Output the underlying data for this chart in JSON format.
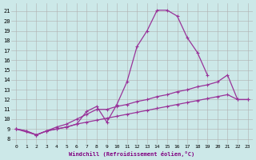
{
  "xlabel": "Windchill (Refroidissement éolien,°C)",
  "bg_color": "#cce8e8",
  "line_color": "#993399",
  "grid_color": "#b0b0b0",
  "x_ticks": [
    0,
    1,
    2,
    3,
    4,
    5,
    6,
    7,
    8,
    9,
    10,
    11,
    12,
    13,
    14,
    15,
    16,
    17,
    18,
    19,
    20,
    21,
    22,
    23
  ],
  "y_ticks": [
    8,
    9,
    10,
    11,
    12,
    13,
    14,
    15,
    16,
    17,
    18,
    19,
    20,
    21
  ],
  "ylim": [
    7.5,
    21.8
  ],
  "xlim": [
    -0.5,
    23.5
  ],
  "line1_x": [
    0,
    1,
    2,
    3,
    4,
    5,
    6,
    7,
    8,
    9,
    10,
    11,
    12,
    13,
    14,
    15,
    16,
    17,
    18,
    19,
    20,
    21,
    22,
    23
  ],
  "line1_y": [
    9.0,
    8.8,
    8.4,
    8.8,
    9.0,
    9.2,
    9.5,
    10.8,
    11.3,
    9.7,
    11.5,
    13.8,
    17.4,
    19.0,
    21.1,
    21.1,
    20.5,
    18.3,
    16.8,
    14.5,
    null,
    null,
    null,
    null
  ],
  "line2_x": [
    0,
    2,
    3,
    4,
    5,
    6,
    7,
    8,
    9,
    10,
    11,
    12,
    13,
    14,
    15,
    16,
    17,
    18,
    19,
    20,
    21,
    22,
    23
  ],
  "line2_y": [
    9.0,
    8.4,
    8.8,
    9.2,
    9.5,
    10.0,
    10.5,
    11.0,
    11.0,
    11.3,
    11.5,
    11.8,
    12.0,
    12.3,
    12.5,
    12.8,
    13.0,
    13.3,
    13.5,
    13.8,
    14.5,
    12.0,
    12.0
  ],
  "line3_x": [
    0,
    1,
    2,
    3,
    4,
    5,
    6,
    7,
    8,
    9,
    10,
    11,
    12,
    13,
    14,
    15,
    16,
    17,
    18,
    19,
    20,
    21,
    22,
    23
  ],
  "line3_y": [
    9.0,
    8.8,
    8.4,
    8.8,
    9.0,
    9.2,
    9.5,
    9.7,
    9.9,
    10.1,
    10.3,
    10.5,
    10.7,
    10.9,
    11.1,
    11.3,
    11.5,
    11.7,
    11.9,
    12.1,
    12.3,
    12.5,
    12.0,
    12.0
  ]
}
